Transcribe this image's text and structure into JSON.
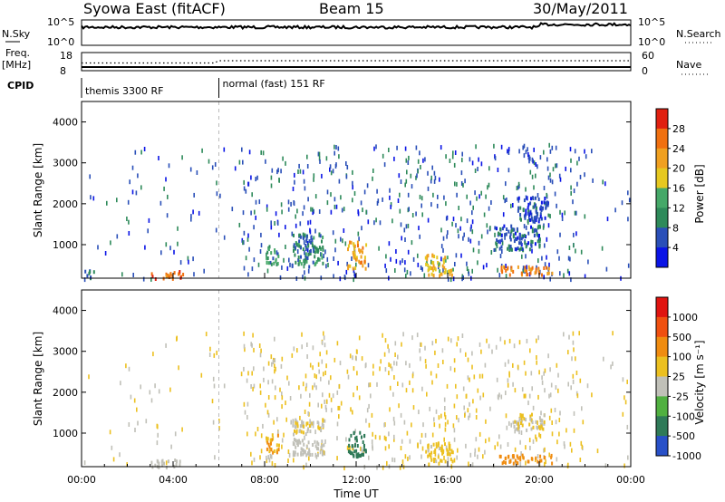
{
  "header": {
    "station": "Syowa East (fitACF)",
    "beam": "Beam 15",
    "date": "30/May/2011"
  },
  "status_panel": {
    "nsky_label": "N.Sky",
    "nsearch_label": "N.Search",
    "nsky_ticks": [
      "10^5",
      "10^0"
    ],
    "nsearch_ticks": [
      "10^5",
      "10^0"
    ],
    "freq_label": "Freq.",
    "freq_unit": "[MHz]",
    "freq_ticks": [
      "18",
      "8"
    ],
    "nave_label": "Nave",
    "nave_ticks": [
      "60",
      "0"
    ],
    "cpid_label": "CPID",
    "cpid_segments": [
      {
        "label": "themis 3300 RF",
        "start_hour": 0
      },
      {
        "label": "normal (fast) 151 RF",
        "start_hour": 6
      }
    ]
  },
  "chart_data": [
    {
      "type": "heatmap",
      "name": "power",
      "ylabel": "Slant Range [km]",
      "ylim": [
        180,
        4500
      ],
      "yticks": [
        1000,
        2000,
        3000,
        4000
      ],
      "xlim": [
        0,
        24
      ],
      "xticks": [
        "00:00",
        "04:00",
        "08:00",
        "12:00",
        "16:00",
        "20:00",
        "00:00"
      ],
      "colorbar": {
        "label": "Power [dB]",
        "ticks": [
          "28",
          "24",
          "20",
          "16",
          "12",
          "8",
          "4"
        ],
        "colors": [
          "#0a14e6",
          "#2a4fb8",
          "#2e8a5a",
          "#45a868",
          "#e6c820",
          "#f0a020",
          "#f07010",
          "#e02010"
        ],
        "range": [
          0,
          30
        ]
      },
      "regions": [
        {
          "t0": 0.1,
          "t1": 0.6,
          "r0": 200,
          "r1": 400,
          "value": 6
        },
        {
          "t0": 3.0,
          "t1": 4.4,
          "r0": 200,
          "r1": 380,
          "value": 24
        },
        {
          "t0": 8.0,
          "t1": 8.6,
          "r0": 550,
          "r1": 1000,
          "value": 10
        },
        {
          "t0": 9.2,
          "t1": 10.6,
          "r0": 500,
          "r1": 1300,
          "value": 9
        },
        {
          "t0": 11.6,
          "t1": 12.4,
          "r0": 450,
          "r1": 1100,
          "value": 20
        },
        {
          "t0": 15.0,
          "t1": 16.2,
          "r0": 280,
          "r1": 800,
          "value": 18
        },
        {
          "t0": 18.2,
          "t1": 20.6,
          "r0": 300,
          "r1": 500,
          "value": 22
        },
        {
          "t0": 18.0,
          "t1": 20.0,
          "r0": 900,
          "r1": 1500,
          "value": 6
        },
        {
          "t0": 19.0,
          "t1": 20.4,
          "r0": 1600,
          "r1": 2200,
          "value": 5
        }
      ]
    },
    {
      "type": "heatmap",
      "name": "velocity",
      "ylabel": "Slant Range [km]",
      "ylim": [
        180,
        4500
      ],
      "yticks": [
        1000,
        2000,
        3000,
        4000
      ],
      "xlim": [
        0,
        24
      ],
      "xticks": [
        "00:00",
        "04:00",
        "08:00",
        "12:00",
        "16:00",
        "20:00",
        "00:00"
      ],
      "xlabel": "Time UT",
      "colorbar": {
        "label": "Velocity [m s⁻¹]",
        "ticks": [
          "1000",
          "500",
          "100",
          "25",
          "-25",
          "-100",
          "-500",
          "-1000"
        ],
        "colors": [
          "#2850c8",
          "#2f7a58",
          "#50b040",
          "#c0c0b8",
          "#ecc020",
          "#f08c10",
          "#f05010",
          "#e01410"
        ],
        "range": [
          -1200,
          1200
        ]
      },
      "regions": [
        {
          "t0": 3.0,
          "t1": 4.4,
          "r0": 200,
          "r1": 380,
          "value": -200
        },
        {
          "t0": 8.0,
          "t1": 8.6,
          "r0": 550,
          "r1": 1000,
          "value": 300
        },
        {
          "t0": 9.2,
          "t1": 10.6,
          "r0": 1000,
          "r1": 1400,
          "value": 0
        },
        {
          "t0": 9.2,
          "t1": 10.6,
          "r0": 500,
          "r1": 900,
          "value": -200
        },
        {
          "t0": 11.6,
          "t1": 12.4,
          "r0": 450,
          "r1": 1100,
          "value": -700
        },
        {
          "t0": 15.0,
          "t1": 16.2,
          "r0": 280,
          "r1": 800,
          "value": 80
        },
        {
          "t0": 18.2,
          "t1": 20.6,
          "r0": 300,
          "r1": 500,
          "value": 400
        },
        {
          "t0": 18.8,
          "t1": 20.2,
          "r0": 1100,
          "r1": 1500,
          "value": 0
        }
      ]
    }
  ],
  "time_axis": {
    "ticks": [
      "00:00",
      "04:00",
      "08:00",
      "12:00",
      "16:00",
      "20:00",
      "00:00"
    ],
    "label": "Time UT"
  }
}
